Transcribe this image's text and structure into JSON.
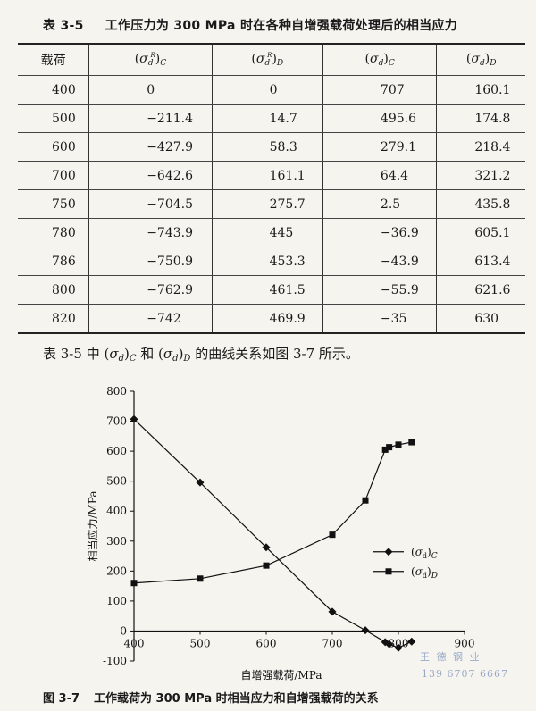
{
  "table": {
    "number": "表 3-5",
    "title": "工作压力为 300 MPa 时在各种自增强载荷处理后的相当应力",
    "headers": {
      "load": "载荷",
      "c1": {
        "sup": "R",
        "sub": "C"
      },
      "c2": {
        "sup": "R",
        "sub": "D"
      },
      "c3": {
        "sub": "C"
      },
      "c4": {
        "sub": "D"
      }
    },
    "rows": [
      [
        "400",
        "0",
        "0",
        "707",
        "160.1"
      ],
      [
        "500",
        "−211.4",
        "14.7",
        "495.6",
        "174.8"
      ],
      [
        "600",
        "−427.9",
        "58.3",
        "279.1",
        "218.4"
      ],
      [
        "700",
        "−642.6",
        "161.1",
        "64.4",
        "321.2"
      ],
      [
        "750",
        "−704.5",
        "275.7",
        "2.5",
        "435.8"
      ],
      [
        "780",
        "−743.9",
        "445",
        "−36.9",
        "605.1"
      ],
      [
        "786",
        "−750.9",
        "453.3",
        "−43.9",
        "613.4"
      ],
      [
        "800",
        "−762.9",
        "461.5",
        "−55.9",
        "621.6"
      ],
      [
        "820",
        "−742",
        "469.9",
        "−35",
        "630"
      ]
    ]
  },
  "body_text": {
    "prefix": "表 3-5 中 ",
    "mid": " 和 ",
    "suffix": " 的曲线关系如图 3-7 所示。"
  },
  "figure": {
    "number": "图 3-7",
    "caption": "工作载荷为 300 MPa 时相当应力和自增强载荷的关系"
  },
  "watermark": {
    "line1": "王 德 钢 业",
    "line2": "139 6707 6667"
  },
  "chart_data": {
    "type": "line",
    "xlabel": "自增强载荷/MPa",
    "ylabel": "相当应力/MPa",
    "xlim": [
      400,
      900
    ],
    "ylim": [
      -100,
      800
    ],
    "xticks": [
      400,
      500,
      600,
      700,
      800,
      900
    ],
    "yticks": [
      -100,
      0,
      100,
      200,
      300,
      400,
      500,
      600,
      700,
      800
    ],
    "legend_position": "right",
    "series": [
      {
        "name": "(σd)C",
        "sub": "C",
        "marker": "diamond",
        "x": [
          400,
          500,
          600,
          700,
          750,
          780,
          786,
          800,
          820
        ],
        "y": [
          707,
          495.6,
          279.1,
          64.4,
          2.5,
          -36.9,
          -43.9,
          -55.9,
          -35
        ]
      },
      {
        "name": "(σd)D",
        "sub": "D",
        "marker": "square",
        "x": [
          400,
          500,
          600,
          700,
          750,
          780,
          786,
          800,
          820
        ],
        "y": [
          160.1,
          174.8,
          218.4,
          321.2,
          435.8,
          605.1,
          613.4,
          621.6,
          630
        ]
      }
    ]
  }
}
